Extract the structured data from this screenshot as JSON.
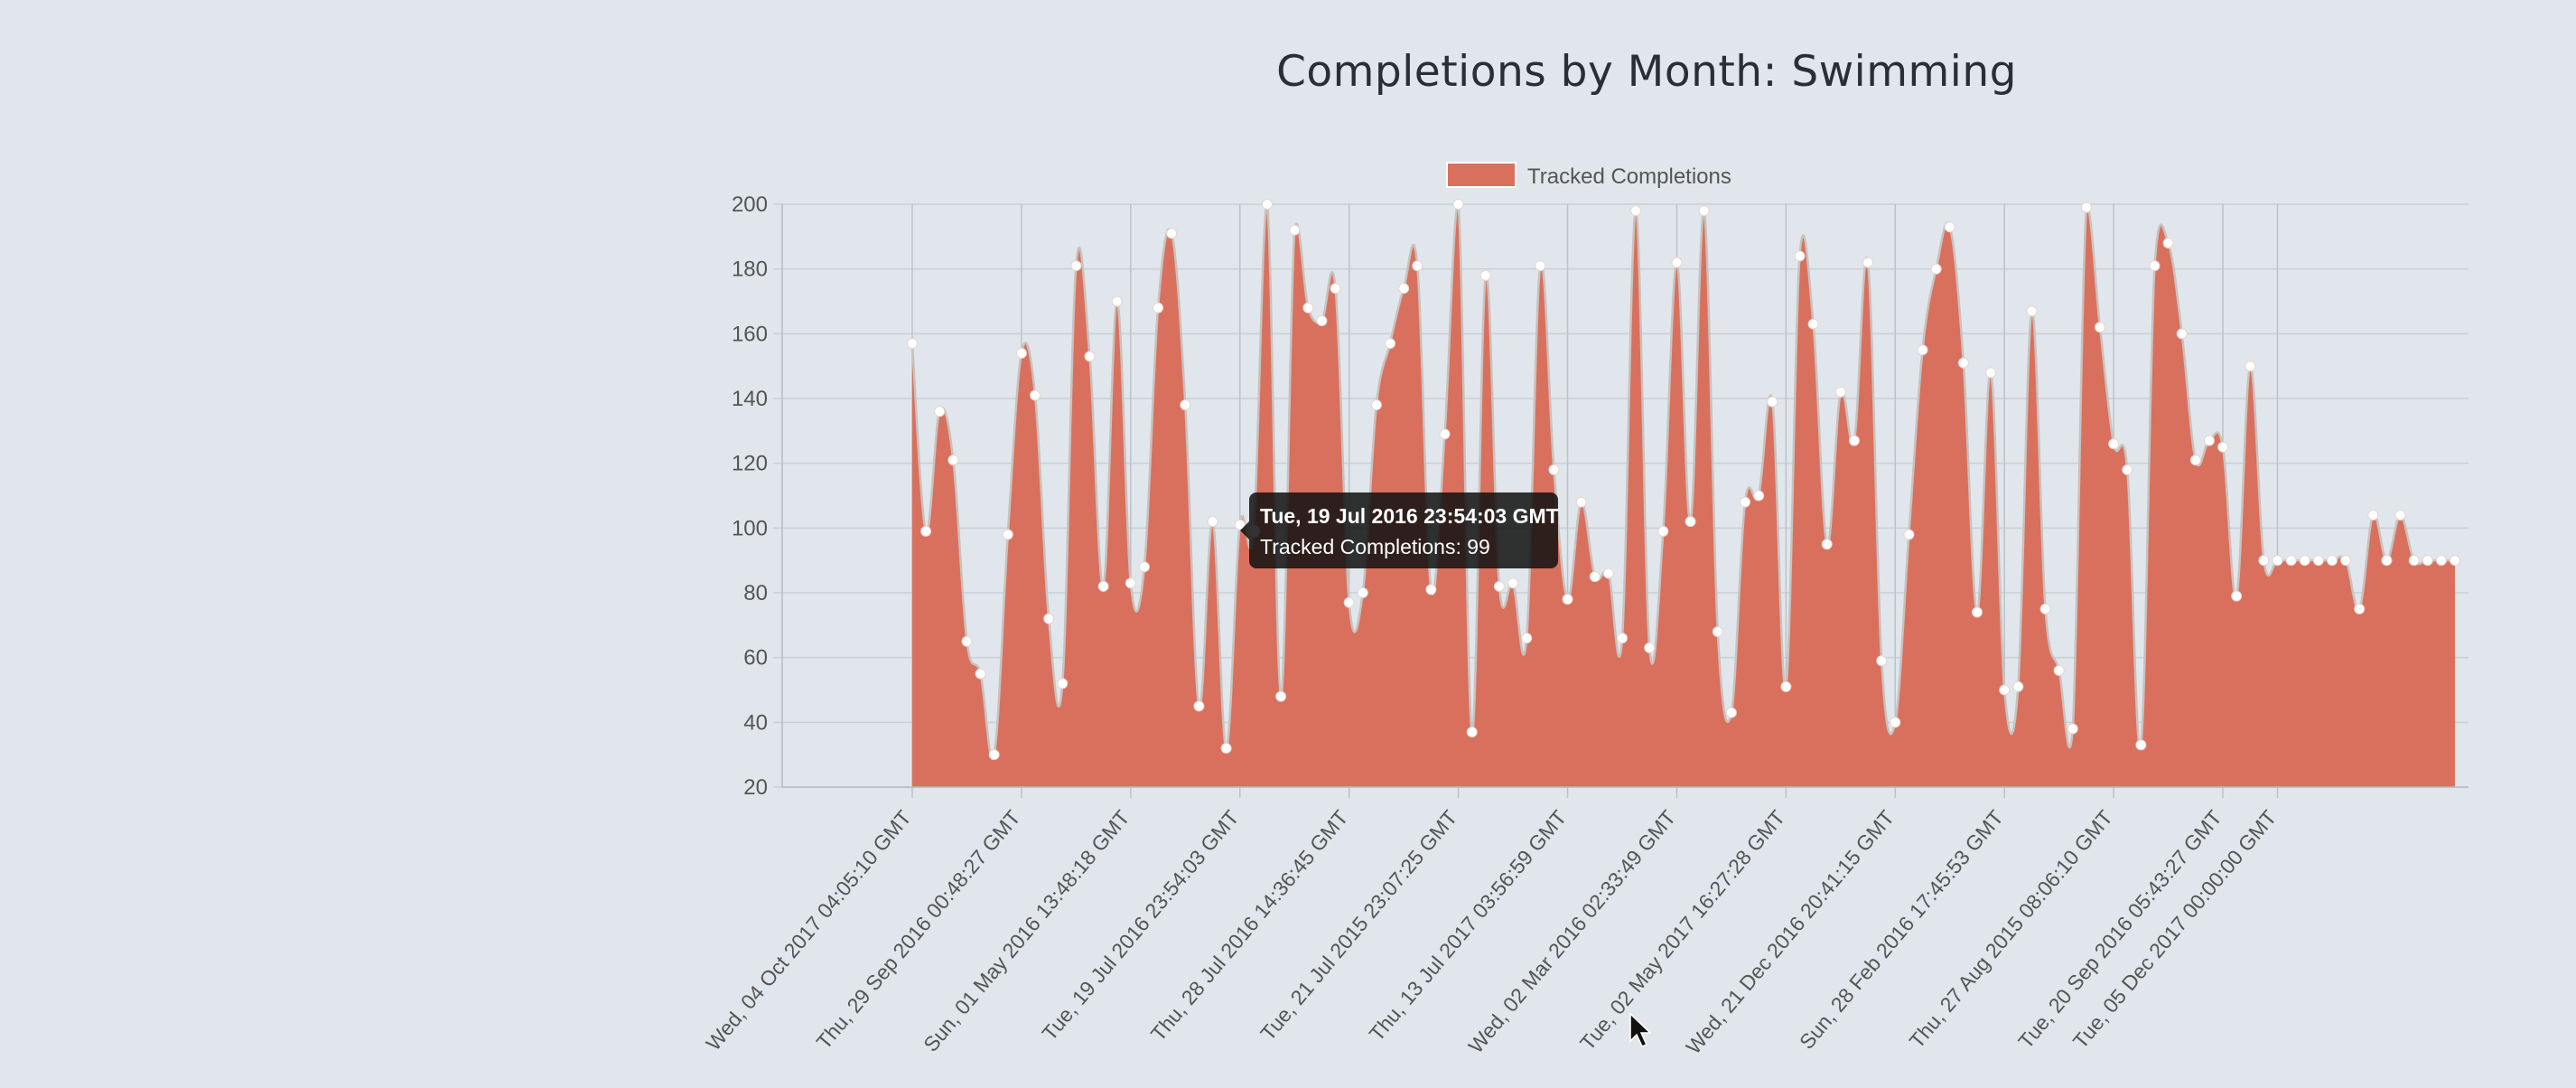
{
  "chart_data": {
    "type": "area",
    "title": "Completions by Month: Swimming",
    "xlabel": "",
    "ylabel": "",
    "ylim": [
      20,
      200
    ],
    "y_ticks": [
      20,
      40,
      60,
      80,
      100,
      120,
      140,
      160,
      180,
      200
    ],
    "grid": true,
    "legend_position": "top-center",
    "series": [
      {
        "name": "Tracked Completions",
        "color": "#d9705d",
        "values": [
          157,
          99,
          136,
          121,
          65,
          55,
          30,
          98,
          154,
          141,
          72,
          52,
          181,
          153,
          82,
          170,
          83,
          88,
          168,
          191,
          138,
          45,
          102,
          32,
          101,
          99,
          200,
          48,
          192,
          168,
          164,
          174,
          77,
          80,
          138,
          157,
          174,
          181,
          81,
          129,
          200,
          37,
          178,
          82,
          83,
          66,
          181,
          118,
          78,
          108,
          85,
          86,
          66,
          198,
          63,
          99,
          182,
          102,
          198,
          68,
          43,
          108,
          110,
          139,
          51,
          184,
          163,
          95,
          142,
          127,
          182,
          59,
          40,
          98,
          155,
          180,
          193,
          151,
          74,
          148,
          50,
          51,
          167,
          75,
          56,
          38,
          199,
          162,
          126,
          118,
          33,
          181,
          188,
          160,
          121,
          127,
          125,
          79,
          150,
          90,
          90,
          90,
          90,
          90,
          90,
          90,
          75,
          104,
          90,
          104,
          90,
          90,
          90,
          90
        ]
      }
    ],
    "x_tick_labels": [
      "Wed, 04 Oct 2017 04:05:10 GMT",
      "Thu, 29 Sep 2016 00:48:27 GMT",
      "Sun, 01 May 2016 13:48:18 GMT",
      "Tue, 19 Jul 2016 23:54:03 GMT",
      "Thu, 28 Jul 2016 14:36:45 GMT",
      "Tue, 21 Jul 2015 23:07:25 GMT",
      "Thu, 13 Jul 2017 03:56:59 GMT",
      "Wed, 02 Mar 2016 02:33:49 GMT",
      "Tue, 02 May 2017 16:27:28 GMT",
      "Wed, 21 Dec 2016 20:41:15 GMT",
      "Sun, 28 Feb 2016 17:45:53 GMT",
      "Thu, 27 Aug 2015 08:06:10 GMT",
      "Tue, 20 Sep 2016 05:43:27 GMT",
      "Tue, 05 Dec 2017 00:00:00 GMT"
    ],
    "x_tick_point_index": [
      0,
      8,
      16,
      24,
      32,
      40,
      48,
      56,
      64,
      72,
      80,
      88,
      96,
      100
    ],
    "tooltip": {
      "point_index": 25,
      "title": "Tue, 19 Jul 2016 23:54:03 GMT",
      "body": "Tracked Completions: 99"
    }
  }
}
